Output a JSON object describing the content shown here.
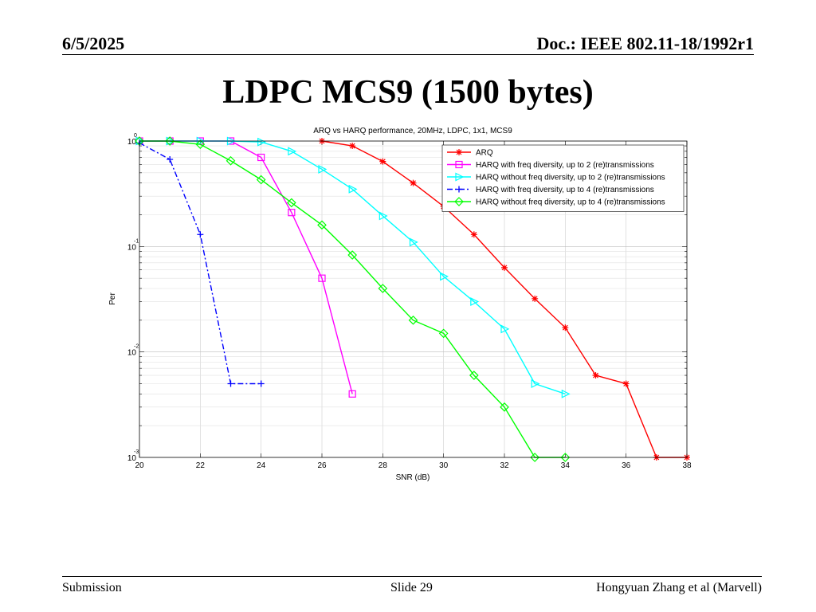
{
  "header": {
    "date": "6/5/2025",
    "doc": "Doc.: IEEE 802.11-18/1992r1"
  },
  "slide": {
    "title": "LDPC MCS9 (1500 bytes)"
  },
  "footer": {
    "left": "Submission",
    "center": "Slide 29",
    "right": "Hongyuan Zhang et al (Marvell)"
  },
  "chart_data": {
    "type": "line",
    "title": "ARQ vs HARQ performance, 20MHz, LDPC, 1x1, MCS9",
    "xlabel": "SNR (dB)",
    "ylabel": "Per",
    "xlim": [
      20,
      38
    ],
    "ylim": [
      0.001,
      1
    ],
    "yscale": "log",
    "grid": true,
    "legend_position": "top-right",
    "x_ticks": [
      20,
      22,
      24,
      26,
      28,
      30,
      32,
      34,
      36,
      38
    ],
    "y_ticks": [
      {
        "value": 1,
        "base": "10",
        "exp": "0"
      },
      {
        "value": 0.1,
        "base": "10",
        "exp": "-1"
      },
      {
        "value": 0.01,
        "base": "10",
        "exp": "-2"
      },
      {
        "value": 0.001,
        "base": "10",
        "exp": "-3"
      }
    ],
    "series": [
      {
        "name": "ARQ",
        "color": "#ff0000",
        "marker": "star",
        "dash": "solid",
        "x": [
          26,
          27,
          28,
          29,
          30,
          31,
          32,
          33,
          34,
          35,
          36,
          37,
          38
        ],
        "y": [
          1.0,
          0.9,
          0.64,
          0.4,
          0.24,
          0.13,
          0.063,
          0.032,
          0.017,
          0.006,
          0.005,
          0.001,
          0.001
        ]
      },
      {
        "name": "HARQ with freq diversity, up to 2 (re)transmissions",
        "color": "#ff00ff",
        "marker": "square",
        "dash": "solid",
        "x": [
          20,
          21,
          22,
          23,
          24,
          25,
          26,
          27
        ],
        "y": [
          1.0,
          1.0,
          1.0,
          1.0,
          0.7,
          0.21,
          0.05,
          0.004
        ]
      },
      {
        "name": "HARQ without freq diversity, up to 2 (re)transmissions",
        "color": "#00ffff",
        "marker": "triangle-right",
        "dash": "solid",
        "x": [
          20,
          21,
          22,
          23,
          24,
          25,
          26,
          27,
          28,
          29,
          30,
          31,
          32,
          33,
          34
        ],
        "y": [
          1.0,
          1.0,
          1.0,
          1.0,
          0.98,
          0.8,
          0.54,
          0.35,
          0.195,
          0.11,
          0.052,
          0.03,
          0.0165,
          0.005,
          0.004
        ]
      },
      {
        "name": "HARQ with freq diversity, up to 4 (re)transmissions",
        "color": "#0000ff",
        "marker": "plus",
        "dash": "dashdot",
        "x": [
          20,
          21,
          22,
          23,
          24
        ],
        "y": [
          0.96,
          0.67,
          0.13,
          0.005,
          0.005
        ]
      },
      {
        "name": "HARQ without freq diversity, up to 4 (re)transmissions",
        "color": "#00ff00",
        "marker": "diamond",
        "dash": "solid",
        "x": [
          20,
          21,
          22,
          23,
          24,
          25,
          26,
          27,
          28,
          29,
          30,
          31,
          32,
          33,
          34
        ],
        "y": [
          1.0,
          1.0,
          0.93,
          0.65,
          0.43,
          0.26,
          0.16,
          0.083,
          0.04,
          0.02,
          0.015,
          0.006,
          0.003,
          0.001,
          0.001
        ]
      }
    ]
  }
}
